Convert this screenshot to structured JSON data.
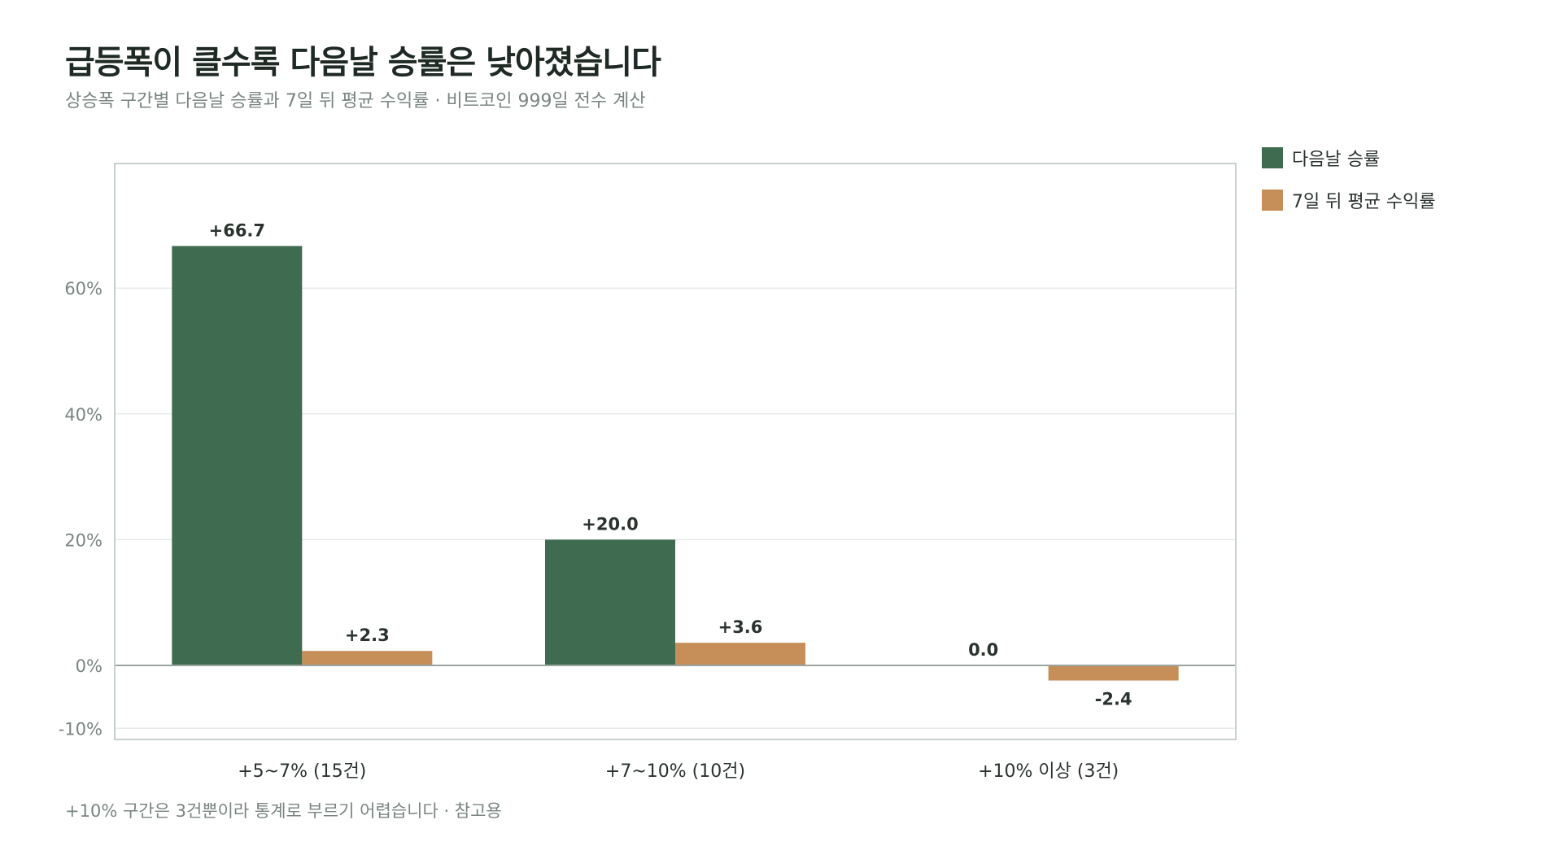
{
  "title": "급등폭이 클수록 다음날 승률은 낮아졌습니다",
  "subtitle": "상승폭 구간별 다음날 승률과 7일 뒤 평균 수익률 · 비트코인 999일 전수 계산",
  "footnote": "+10% 구간은 3건뿐이라 통계로 부르기 어렵습니다 · 참고용",
  "chart_data": {
    "type": "bar",
    "categories": [
      "+5~7% (15건)",
      "+7~10% (10건)",
      "+10% 이상 (3건)"
    ],
    "series": [
      {
        "name": "다음날 승률",
        "values": [
          66.7,
          20.0,
          0.0
        ],
        "labels": [
          "+66.7",
          "+20.0",
          "0.0"
        ],
        "color": "#3f6b51"
      },
      {
        "name": "7일 뒤 평균 수익률",
        "values": [
          2.3,
          3.6,
          -2.4
        ],
        "labels": [
          "+2.3",
          "+3.6",
          "-2.4"
        ],
        "color": "#c68e58"
      }
    ],
    "ylim": [
      -12,
      80
    ],
    "yticks": [
      -10,
      0,
      20,
      40,
      60
    ],
    "ytick_labels": [
      "-10%",
      "0%",
      "20%",
      "40%",
      "60%"
    ],
    "grid": true,
    "legend_position": "right"
  }
}
